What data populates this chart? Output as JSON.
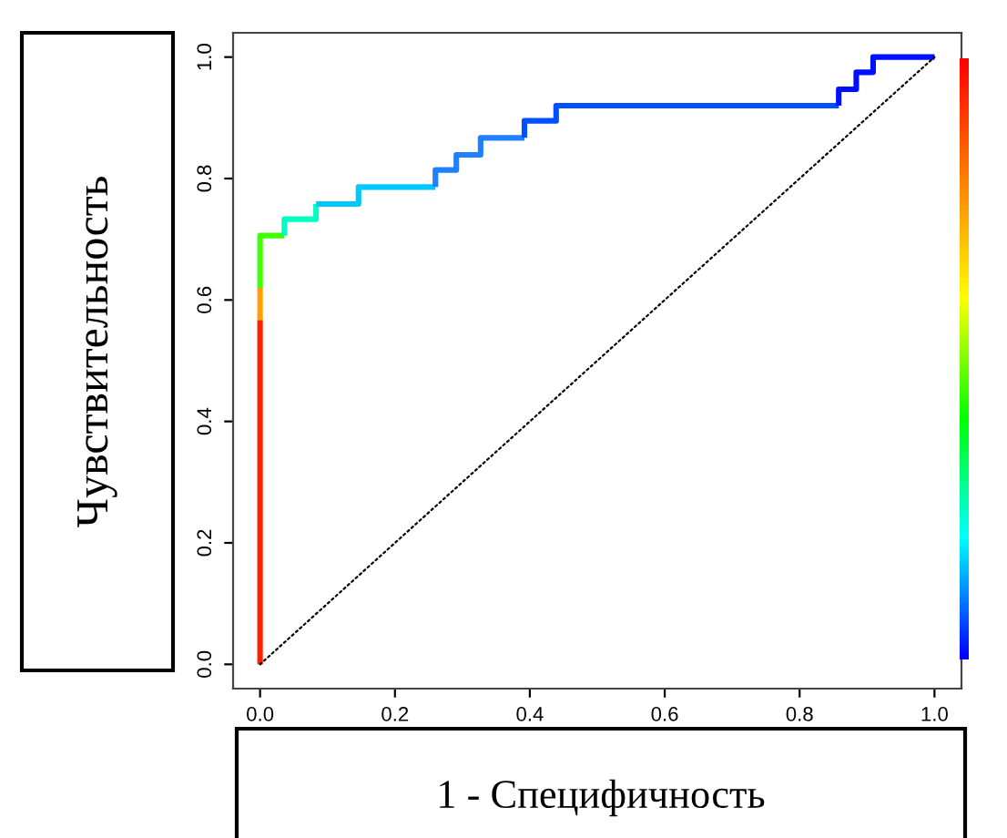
{
  "chart_data": {
    "type": "line",
    "xlabel": "1 - Специфичность",
    "ylabel": "Чувствительность",
    "xlim": [
      -0.04,
      1.04
    ],
    "ylim": [
      -0.04,
      1.04
    ],
    "xticks": [
      {
        "value": 0,
        "label": "0.0"
      },
      0.2,
      0.4,
      0.6,
      0.8,
      {
        "value": 1,
        "label": "1.0"
      }
    ],
    "yticks": [
      {
        "value": 0,
        "label": "0.0"
      },
      0.2,
      0.4,
      0.6,
      0.8,
      {
        "value": 1,
        "label": "1.0"
      }
    ],
    "grid": false,
    "legend": false,
    "marker": "none",
    "series": [
      {
        "color": "#ff2000",
        "x": [
          0,
          0
        ],
        "values": [
          0,
          0.567
        ]
      },
      {
        "color": "#ffa000",
        "x": [
          0,
          0
        ],
        "values": [
          0.567,
          0.62
        ]
      },
      {
        "color": "#40ff00",
        "x": [
          0,
          0,
          0.036
        ],
        "values": [
          0.62,
          0.706,
          0.706
        ]
      },
      {
        "color": "#00ffc0",
        "x": [
          0.036,
          0.036,
          0.083,
          0.083
        ],
        "values": [
          0.706,
          0.733,
          0.733,
          0.758
        ]
      },
      {
        "color": "#00c8ff",
        "x": [
          0.083,
          0.146,
          0.146,
          0.26
        ],
        "values": [
          0.758,
          0.758,
          0.786,
          0.786
        ]
      },
      {
        "color": "#2080ff",
        "x": [
          0.26,
          0.26,
          0.291,
          0.291,
          0.327,
          0.327,
          0.392
        ],
        "values": [
          0.786,
          0.814,
          0.814,
          0.839,
          0.839,
          0.867,
          0.867
        ]
      },
      {
        "color": "#0050ff",
        "x": [
          0.392,
          0.392,
          0.439,
          0.439,
          0.858
        ],
        "values": [
          0.867,
          0.895,
          0.895,
          0.92,
          0.92
        ]
      },
      {
        "color": "#0010ff",
        "x": [
          0.858,
          0.858,
          0.884,
          0.884,
          0.909,
          0.909,
          1.0
        ],
        "values": [
          0.92,
          0.947,
          0.947,
          0.975,
          0.975,
          1.0,
          1.0
        ]
      },
      {
        "color": "#000000",
        "line_style": "dotted",
        "x": [
          0,
          1
        ],
        "values": [
          0,
          1
        ]
      }
    ]
  }
}
